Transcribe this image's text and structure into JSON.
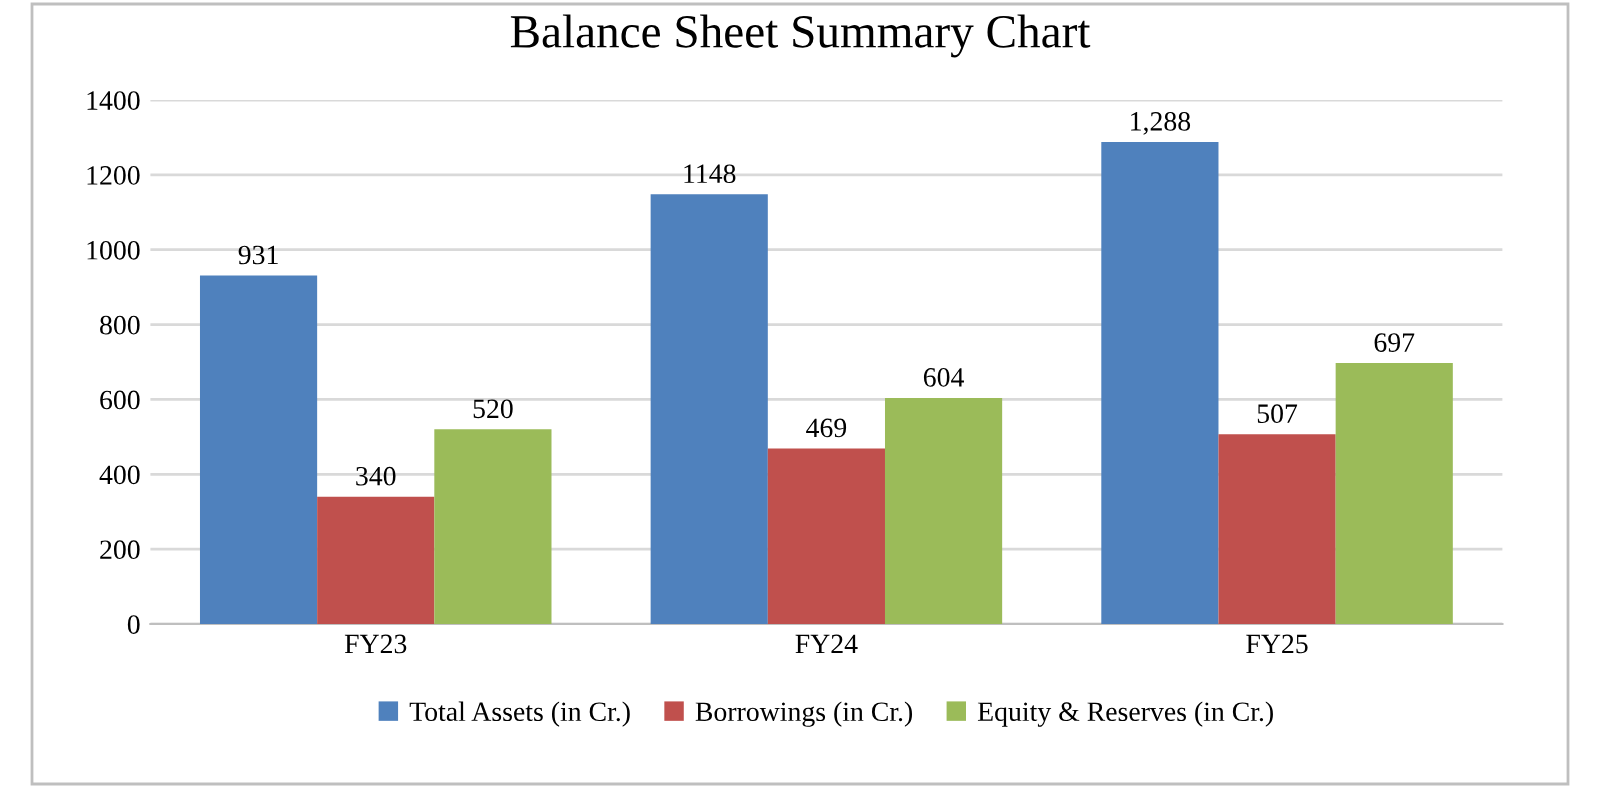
{
  "chart_data": {
    "type": "bar",
    "title": "Balance Sheet Summary Chart",
    "categories": [
      "FY23",
      "FY24",
      "FY25"
    ],
    "series": [
      {
        "name": "Total Assets (in Cr.)",
        "color": "#4f81bd",
        "values": [
          931,
          1148,
          1288
        ],
        "value_labels": [
          "931",
          "1148",
          "1,288"
        ]
      },
      {
        "name": "Borrowings (in Cr.)",
        "color": "#c0504d",
        "values": [
          340,
          469,
          507
        ],
        "value_labels": [
          "340",
          "469",
          "507"
        ]
      },
      {
        "name": "Equity & Reserves (in Cr.)",
        "color": "#9bbb59",
        "values": [
          520,
          604,
          697
        ],
        "value_labels": [
          "520",
          "604",
          "697"
        ]
      }
    ],
    "ylim": [
      0,
      1400
    ],
    "yticks": [
      0,
      200,
      400,
      600,
      800,
      1000,
      1200,
      1400
    ],
    "grid": "y",
    "legend": "bottom"
  }
}
